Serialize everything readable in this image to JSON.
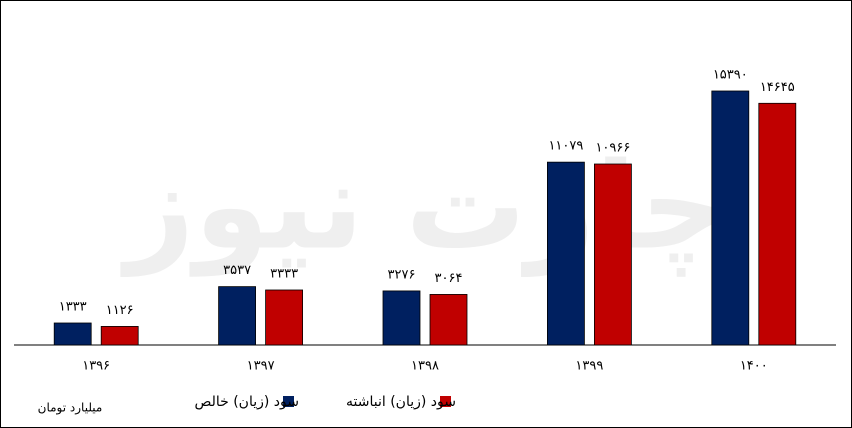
{
  "chart_data": {
    "type": "bar",
    "watermark": "چارت نیوز",
    "unit_label": "میلیارد تومان",
    "categories": [
      "۱۳۹۶",
      "۱۳۹۷",
      "۱۳۹۸",
      "۱۳۹۹",
      "۱۴۰۰"
    ],
    "series": [
      {
        "name": "سود (زیان) خالص",
        "color": "#002060",
        "values": [
          1333,
          3537,
          3276,
          11079,
          15390
        ],
        "value_labels": [
          "۱۳۳۳",
          "۳۵۳۷",
          "۳۲۷۶",
          "۱۱۰۷۹",
          "۱۵۳۹۰"
        ]
      },
      {
        "name": "سود (زیان) انباشته",
        "color": "#c00000",
        "values": [
          1126,
          3333,
          3064,
          10966,
          14645
        ],
        "value_labels": [
          "۱۱۲۶",
          "۳۳۳۳",
          "۳۰۶۴",
          "۱۰۹۶۶",
          "۱۴۶۴۵"
        ]
      }
    ]
  }
}
